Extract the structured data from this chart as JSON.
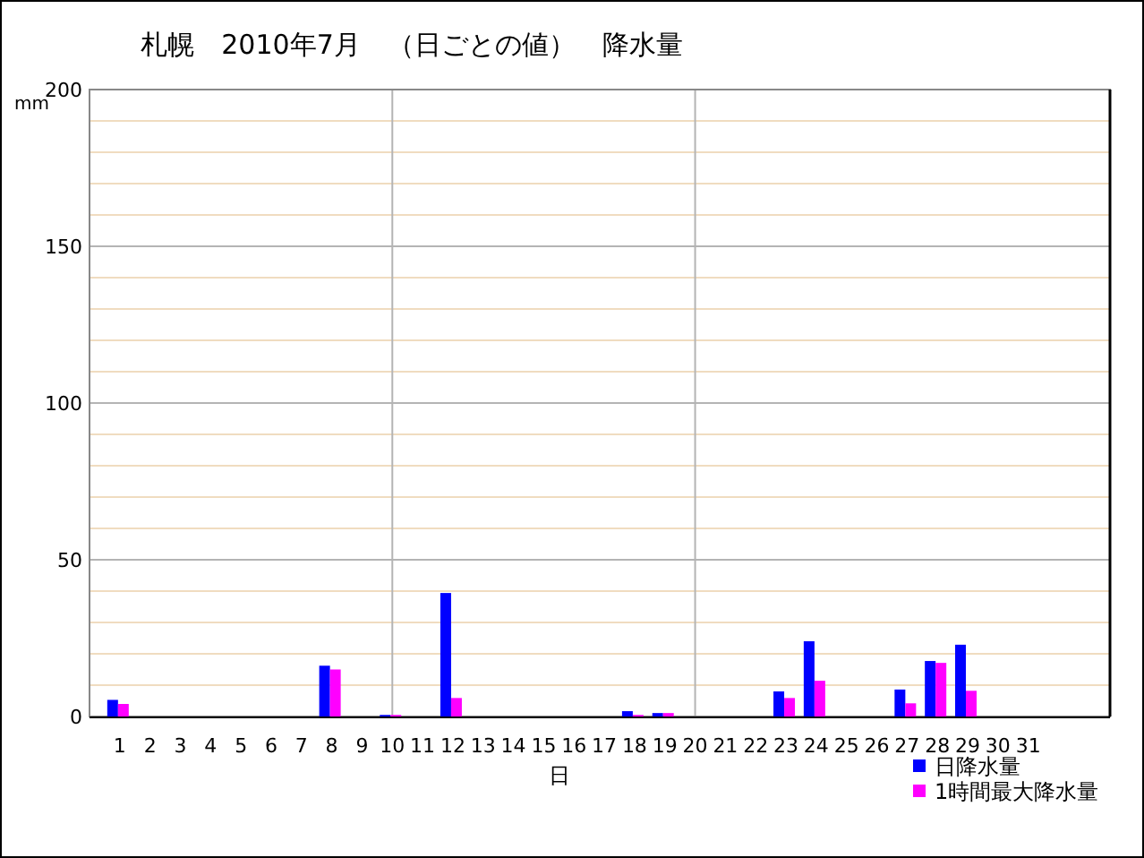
{
  "chart_data": {
    "type": "bar",
    "title": "札幌　2010年7月　（日ごとの値）　降水量",
    "xlabel": "日",
    "ylabel": "mm",
    "x": [
      1,
      2,
      3,
      4,
      5,
      6,
      7,
      8,
      9,
      10,
      11,
      12,
      13,
      14,
      15,
      16,
      17,
      18,
      19,
      20,
      21,
      22,
      23,
      24,
      25,
      26,
      27,
      28,
      29,
      30,
      31
    ],
    "xlim": [
      0,
      33.7
    ],
    "xticks": [
      1,
      2,
      3,
      4,
      5,
      6,
      7,
      8,
      9,
      10,
      11,
      12,
      13,
      14,
      15,
      16,
      17,
      18,
      19,
      20,
      21,
      22,
      23,
      24,
      25,
      26,
      27,
      28,
      29,
      30,
      31
    ],
    "ylim": [
      0,
      200
    ],
    "yticks": [
      0,
      {
        "value": 10,
        "label": null
      },
      {
        "value": 20,
        "label": null
      },
      {
        "value": 30,
        "label": null
      },
      {
        "value": 40,
        "label": null
      },
      50,
      {
        "value": 60,
        "label": null
      },
      {
        "value": 70,
        "label": null
      },
      {
        "value": 80,
        "label": null
      },
      {
        "value": 90,
        "label": null
      },
      100,
      {
        "value": 110,
        "label": null
      },
      {
        "value": 120,
        "label": null
      },
      {
        "value": 130,
        "label": null
      },
      {
        "value": 140,
        "label": null
      },
      150,
      {
        "value": 160,
        "label": null
      },
      {
        "value": 170,
        "label": null
      },
      {
        "value": 180,
        "label": null
      },
      {
        "value": 190,
        "label": null
      },
      200
    ],
    "grid": "y",
    "ref_lines": [
      {
        "axis": "x",
        "value": 10,
        "color": "#b4b4b4"
      },
      {
        "axis": "x",
        "value": 20,
        "color": "#b4b4b4"
      }
    ],
    "legend": "bottom right",
    "series": [
      {
        "name": "日降水量",
        "color": "#0000ff",
        "values": [
          5.3,
          0,
          0,
          0,
          0,
          0,
          0,
          16.2,
          0,
          0.5,
          0,
          39.4,
          0,
          0,
          0,
          0,
          0,
          1.7,
          1.1,
          0,
          0,
          0,
          8.0,
          24.0,
          0,
          0,
          8.6,
          17.7,
          22.9,
          0,
          0
        ]
      },
      {
        "name": "1時間最大降水量",
        "color": "#ff00ff",
        "values": [
          4.0,
          0,
          0,
          0,
          0,
          0,
          0,
          15.0,
          0,
          0.5,
          0,
          5.9,
          0,
          0,
          0,
          0,
          0,
          0.5,
          1.1,
          0,
          0,
          0,
          5.9,
          11.4,
          0,
          0,
          4.2,
          17.1,
          8.2,
          0,
          0
        ]
      }
    ]
  }
}
